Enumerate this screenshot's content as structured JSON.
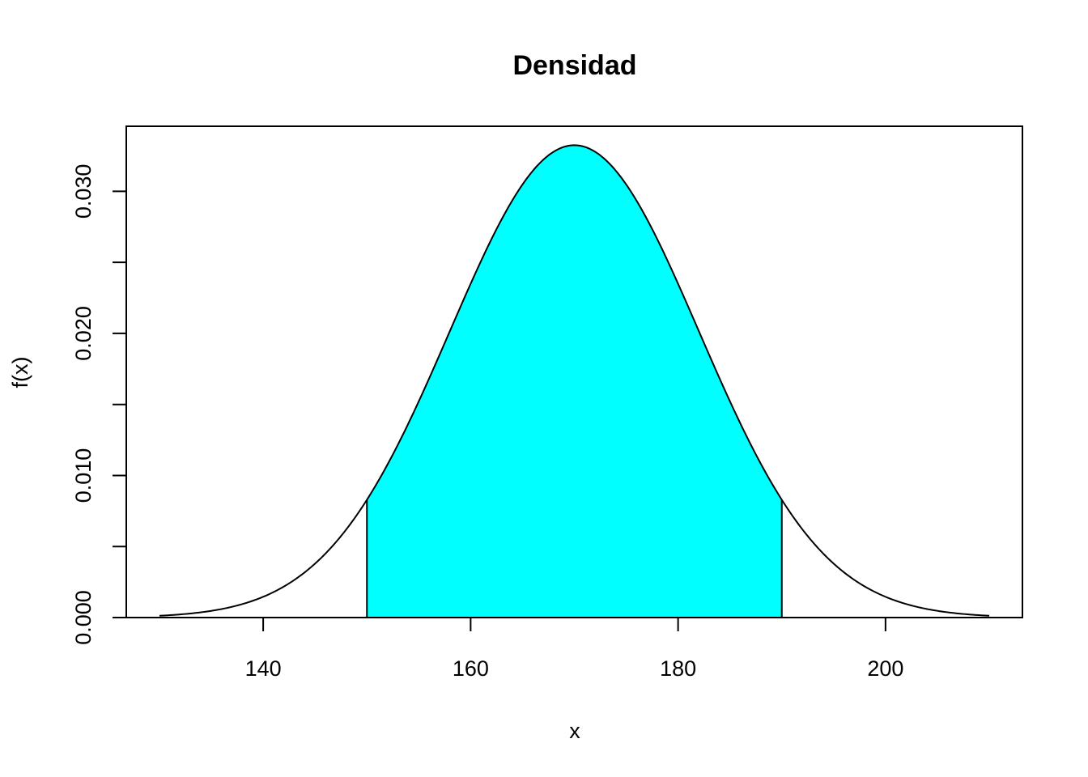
{
  "chart_data": {
    "type": "line",
    "title": "Densidad",
    "xlabel": "x",
    "ylabel": "f(x)",
    "xlim": [
      126.8,
      213.2
    ],
    "ylim": [
      0,
      0.03458
    ],
    "x_ticks": [
      140,
      160,
      180,
      200
    ],
    "x_tick_labels": [
      "140",
      "160",
      "180",
      "200"
    ],
    "y_ticks": [
      0,
      0.005,
      0.01,
      0.015,
      0.02,
      0.025,
      0.03
    ],
    "y_tick_labels": [
      "0.000",
      "",
      "0.010",
      "",
      "0.020",
      "",
      "0.030"
    ],
    "curve": {
      "distribution": "normal",
      "mean": 170,
      "sd": 12,
      "x_range": [
        130,
        210
      ]
    },
    "shaded_region": {
      "from": 150,
      "to": 190,
      "color": "#00FFFF"
    },
    "grid": false,
    "legend": "none"
  }
}
